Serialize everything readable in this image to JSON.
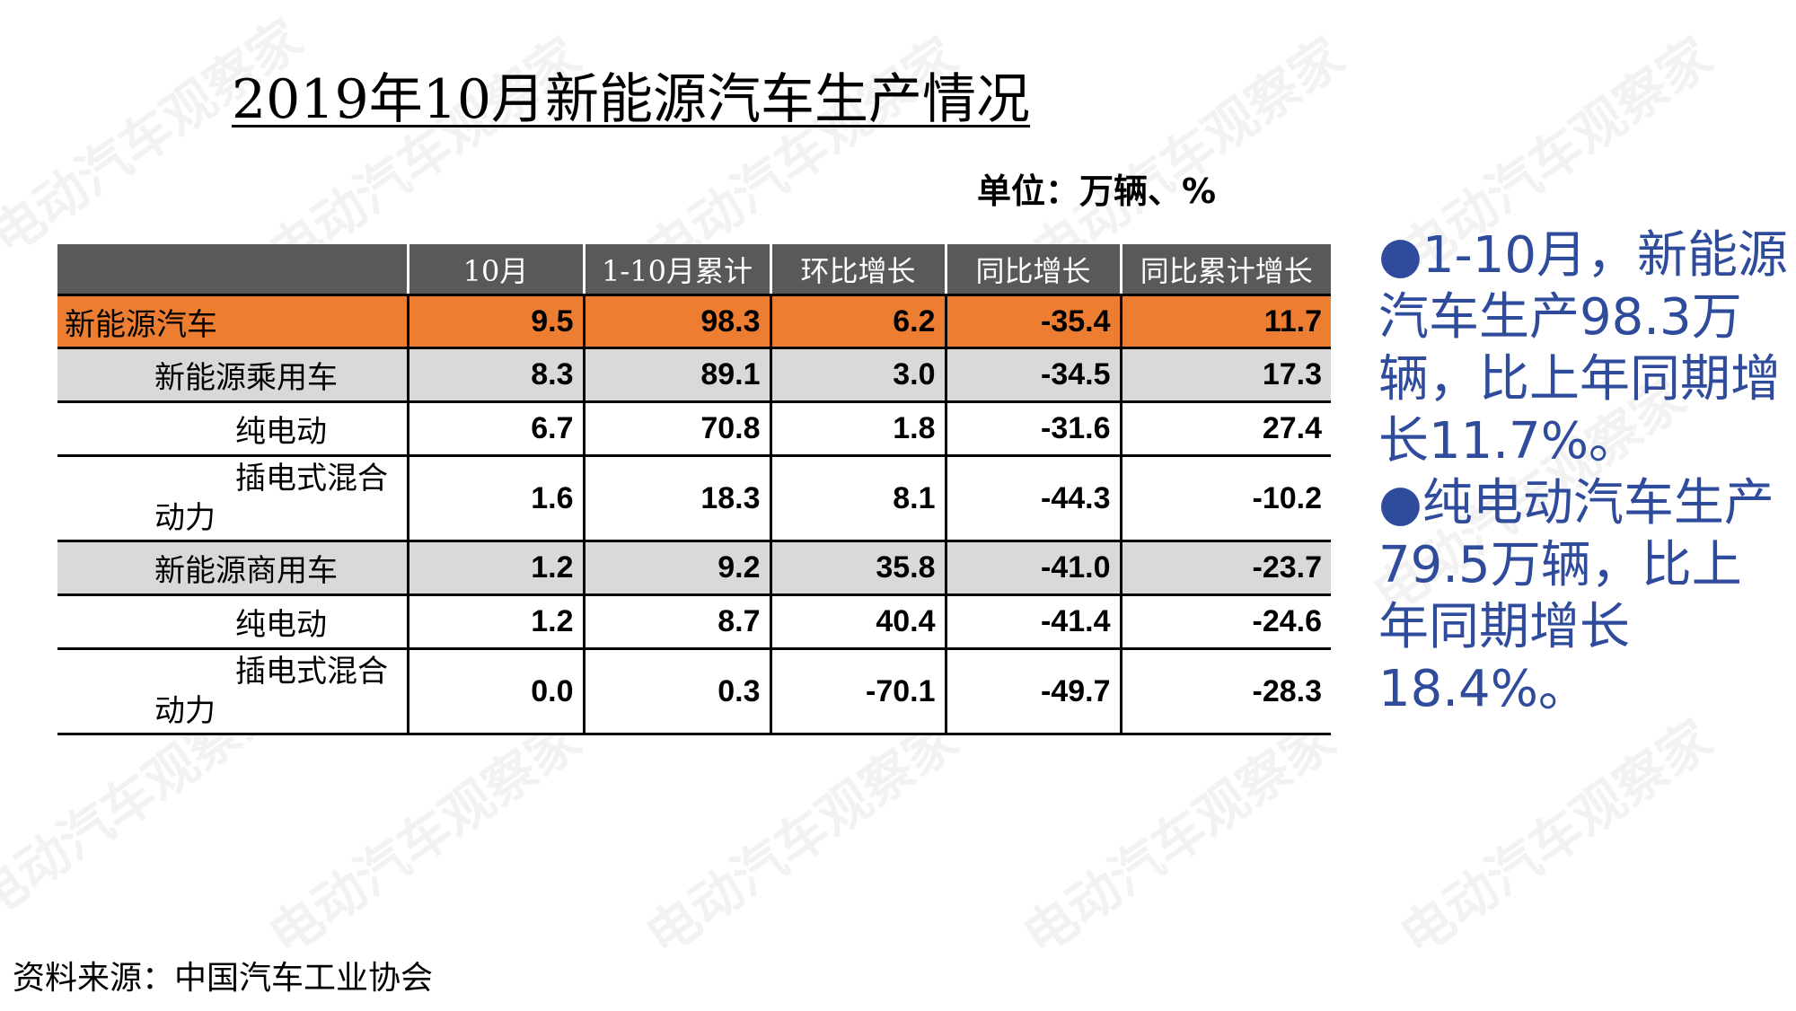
{
  "title": "2019年10月新能源汽车生产情况",
  "unit": "单位：万辆、%",
  "watermark": "电动汽车观察家",
  "table": {
    "headers": [
      "",
      "10月",
      "1-10月累计",
      "环比增长",
      "同比增长",
      "同比累计增长"
    ],
    "rows": [
      {
        "name": "新能源汽车",
        "values": [
          "9.5",
          "98.3",
          "6.2",
          "-35.4",
          "11.7"
        ]
      },
      {
        "name": "新能源乘用车",
        "values": [
          "8.3",
          "89.1",
          "3.0",
          "-34.5",
          "17.3"
        ]
      },
      {
        "name": "纯电动",
        "values": [
          "6.7",
          "70.8",
          "1.8",
          "-31.6",
          "27.4"
        ]
      },
      {
        "name_line1": "插电式混合",
        "name_line2": "动力",
        "values": [
          "1.6",
          "18.3",
          "8.1",
          "-44.3",
          "-10.2"
        ]
      },
      {
        "name": "新能源商用车",
        "values": [
          "1.2",
          "9.2",
          "35.8",
          "-41.0",
          "-23.7"
        ]
      },
      {
        "name": "纯电动",
        "values": [
          "1.2",
          "8.7",
          "40.4",
          "-41.4",
          "-24.6"
        ]
      },
      {
        "name_line1": "插电式混合",
        "name_line2": "动力",
        "values": [
          "0.0",
          "0.3",
          "-70.1",
          "-49.7",
          "-28.3"
        ]
      }
    ]
  },
  "notes": [
    "●1-10月，新能源汽车生产98.3万辆，比上年同期增长11.7%。",
    "●纯电动汽车生产79.5万辆，比上年同期增长18.4%。"
  ],
  "source": "资料来源：中国汽车工业协会",
  "colors": {
    "header_bg": "#595959",
    "total_row_bg": "#ed7d31",
    "gray_row_bg": "#d9d9d9",
    "note_text": "#2e4b9c"
  }
}
